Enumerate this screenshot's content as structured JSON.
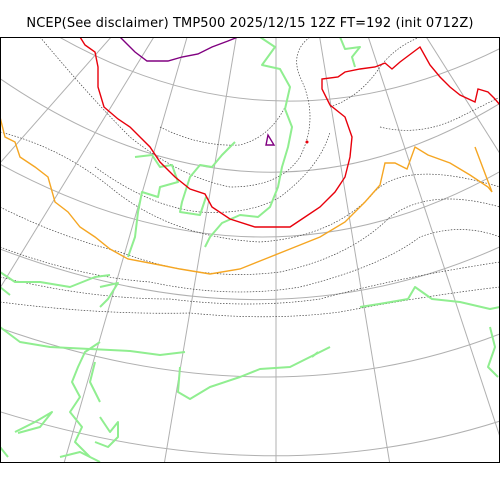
{
  "title": "NCEP(See disclaimer) TMP500 2025/12/15 12Z FT=192 (init 0712Z)",
  "colors": {
    "background": "#ffffff",
    "graticule": "#b0b0b0",
    "coastline": "#90ee90",
    "isotherm_dotted": "#444444",
    "contour_orange": "#f5a623",
    "contour_red": "#e8000b",
    "contour_purple": "#800080",
    "frame": "#000000"
  }
}
